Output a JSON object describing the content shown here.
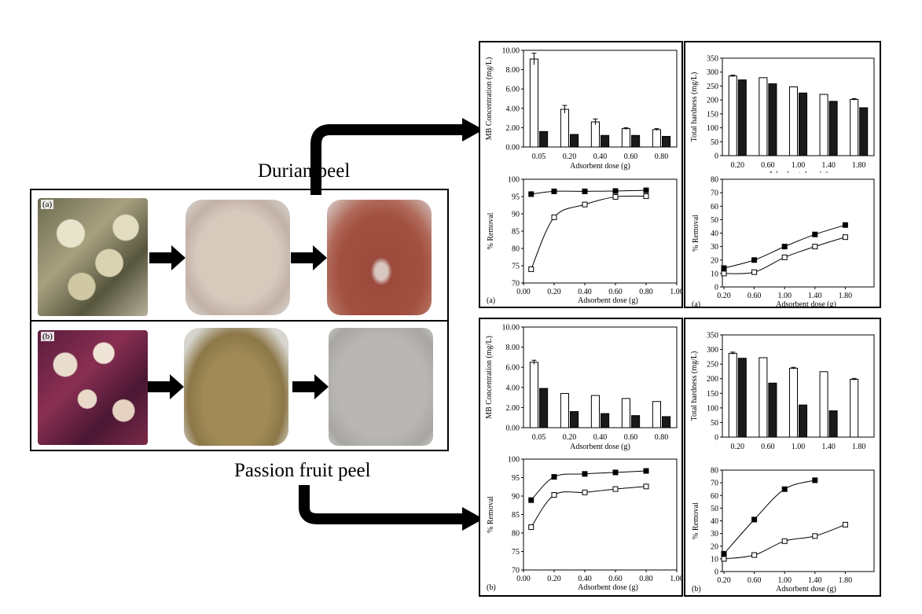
{
  "labels": {
    "durian": "Durian peel",
    "passion": "Passion fruit peel",
    "row_a": "(a)",
    "row_b": "(b)"
  },
  "chart_data": [
    {
      "id": "durian-mb-conc",
      "type": "bar",
      "ylabel": "MB Concentration (mg/L)",
      "xlabel": "Adsorbent dose (g)",
      "categories": [
        "0.05",
        "0.20",
        "0.40",
        "0.60",
        "0.80"
      ],
      "ylim": [
        0,
        10
      ],
      "yticks": [
        "0.00",
        "2.00",
        "4.00",
        "6.00",
        "8.00",
        "10.00"
      ],
      "series": [
        {
          "fill": "#ffffff",
          "values": [
            9.1,
            3.9,
            2.6,
            1.9,
            1.8
          ],
          "errors": [
            0.6,
            0.4,
            0.3,
            0.1,
            0.1
          ]
        },
        {
          "fill": "#1a1a1a",
          "values": [
            1.6,
            1.3,
            1.2,
            1.2,
            1.1
          ],
          "errors": [
            0,
            0,
            0,
            0,
            0
          ]
        }
      ]
    },
    {
      "id": "durian-removal-mb",
      "type": "line",
      "panel_tag": "(a)",
      "ylabel": "% Removal",
      "xlabel": "Adsorbent dose (g)",
      "xlim": [
        0,
        1
      ],
      "xticks": [
        "0.00",
        "0.20",
        "0.40",
        "0.60",
        "0.80",
        "1.00"
      ],
      "ylim": [
        70,
        100
      ],
      "yticks": [
        "70",
        "75",
        "80",
        "85",
        "90",
        "95",
        "100"
      ],
      "series": [
        {
          "marker": "filled",
          "x": [
            0.05,
            0.2,
            0.4,
            0.6,
            0.8
          ],
          "y": [
            95.7,
            96.5,
            96.5,
            96.6,
            96.8
          ]
        },
        {
          "marker": "open",
          "x": [
            0.05,
            0.2,
            0.4,
            0.6,
            0.8
          ],
          "y": [
            74.0,
            89.0,
            92.7,
            94.9,
            95.1
          ]
        }
      ]
    },
    {
      "id": "durian-hardness",
      "type": "bar",
      "ylabel": "Total hardness (mg/L)",
      "xlabel": "Adsorbent dose (g)",
      "categories": [
        "0.20",
        "0.60",
        "1.00",
        "1.40",
        "1.80"
      ],
      "ylim": [
        0,
        350
      ],
      "yticks": [
        "0",
        "50",
        "100",
        "150",
        "200",
        "250",
        "300",
        "350"
      ],
      "series": [
        {
          "fill": "#ffffff",
          "values": [
            286,
            280,
            247,
            220,
            202
          ],
          "errors": [
            3,
            0,
            0,
            0,
            3
          ]
        },
        {
          "fill": "#1a1a1a",
          "values": [
            272,
            258,
            225,
            195,
            172
          ],
          "errors": [
            0,
            0,
            0,
            0,
            0
          ]
        }
      ]
    },
    {
      "id": "durian-removal-hardness",
      "type": "line",
      "panel_tag": "(a)",
      "ylabel": "% Removal",
      "xlabel": "Adsorbent dose (g)",
      "xcats": [
        "0.20",
        "0.60",
        "1.00",
        "1.40",
        "1.80"
      ],
      "ylim": [
        0,
        80
      ],
      "yticks": [
        "0",
        "10",
        "20",
        "30",
        "40",
        "50",
        "60",
        "70",
        "80"
      ],
      "series": [
        {
          "marker": "filled",
          "y": [
            14,
            20,
            30,
            39,
            46
          ]
        },
        {
          "marker": "open",
          "y": [
            10,
            11,
            22,
            30,
            37
          ]
        }
      ]
    },
    {
      "id": "passion-mb-conc",
      "type": "bar",
      "ylabel": "MB Concentration (mg/L)",
      "xlabel": "Adsorbent dose (g)",
      "categories": [
        "0.05",
        "0.20",
        "0.40",
        "0.60",
        "0.80"
      ],
      "ylim": [
        0,
        10
      ],
      "yticks": [
        "0.00",
        "2.00",
        "4.00",
        "6.00",
        "8.00",
        "10.00"
      ],
      "series": [
        {
          "fill": "#ffffff",
          "values": [
            6.5,
            3.4,
            3.2,
            2.9,
            2.6
          ],
          "errors": [
            0.2,
            0,
            0,
            0,
            0
          ]
        },
        {
          "fill": "#1a1a1a",
          "values": [
            3.9,
            1.6,
            1.4,
            1.2,
            1.1
          ],
          "errors": [
            0,
            0,
            0,
            0,
            0
          ]
        }
      ]
    },
    {
      "id": "passion-removal-mb",
      "type": "line",
      "panel_tag": "(b)",
      "ylabel": "% Removal",
      "xlabel": "Adsorbent dose (g)",
      "xlim": [
        0,
        1
      ],
      "xticks": [
        "0.00",
        "0.20",
        "0.40",
        "0.60",
        "0.80",
        "1.00"
      ],
      "ylim": [
        70,
        100
      ],
      "yticks": [
        "70",
        "75",
        "80",
        "85",
        "90",
        "95",
        "100"
      ],
      "series": [
        {
          "marker": "filled",
          "x": [
            0.05,
            0.2,
            0.4,
            0.6,
            0.8
          ],
          "y": [
            88.9,
            95.2,
            96.0,
            96.4,
            96.8
          ]
        },
        {
          "marker": "open",
          "x": [
            0.05,
            0.2,
            0.4,
            0.6,
            0.8
          ],
          "y": [
            81.6,
            90.3,
            91.0,
            91.9,
            92.6
          ]
        }
      ]
    },
    {
      "id": "passion-hardness",
      "type": "bar",
      "ylabel": "Total hardness (mg/L)",
      "xlabel": "Adsorbent dose (g)",
      "categories": [
        "0.20",
        "0.60",
        "1.00",
        "1.40",
        "1.80"
      ],
      "ylim": [
        0,
        350
      ],
      "yticks": [
        "0",
        "50",
        "100",
        "150",
        "200",
        "250",
        "300",
        "350"
      ],
      "series": [
        {
          "fill": "#ffffff",
          "values": [
            287,
            272,
            236,
            224,
            198
          ],
          "errors": [
            4,
            0,
            3,
            0,
            3
          ]
        },
        {
          "fill": "#1a1a1a",
          "values": [
            270,
            185,
            110,
            90,
            null
          ],
          "errors": [
            0,
            0,
            0,
            0,
            0
          ]
        }
      ]
    },
    {
      "id": "passion-removal-hardness",
      "type": "line",
      "panel_tag": "(b)",
      "ylabel": "% Removal",
      "xlabel": "Adsorbent dose (g)",
      "xcats": [
        "0.20",
        "0.60",
        "1.00",
        "1.40",
        "1.80"
      ],
      "ylim": [
        0,
        80
      ],
      "yticks": [
        "0",
        "10",
        "20",
        "30",
        "40",
        "50",
        "60",
        "70",
        "80"
      ],
      "series": [
        {
          "marker": "filled",
          "y": [
            14,
            41,
            65,
            72,
            null
          ]
        },
        {
          "marker": "open",
          "y": [
            10,
            13,
            24,
            28,
            37
          ]
        }
      ]
    }
  ]
}
